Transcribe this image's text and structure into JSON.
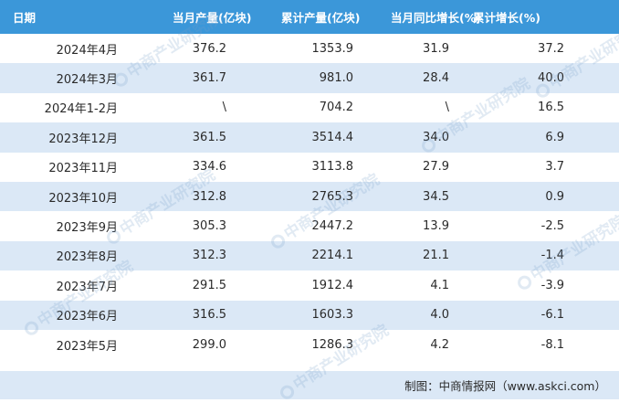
{
  "table": {
    "headers": [
      "日期",
      "当月产量(亿块)",
      "累计产量(亿块)",
      "当月同比增长(%)",
      "累计增长(%)"
    ],
    "rows": [
      [
        "2024年4月",
        "376.2",
        "1353.9",
        "31.9",
        "37.2"
      ],
      [
        "2024年3月",
        "361.7",
        "981.0",
        "28.4",
        "40.0"
      ],
      [
        "2024年1-2月",
        "\\",
        "704.2",
        "\\",
        "16.5"
      ],
      [
        "2023年12月",
        "361.5",
        "3514.4",
        "34.0",
        "6.9"
      ],
      [
        "2023年11月",
        "334.6",
        "3113.8",
        "27.9",
        "3.7"
      ],
      [
        "2023年10月",
        "312.8",
        "2765.3",
        "34.5",
        "0.9"
      ],
      [
        "2023年9月",
        "305.3",
        "2447.2",
        "13.9",
        "-2.5"
      ],
      [
        "2023年8月",
        "312.3",
        "2214.1",
        "21.1",
        "-1.4"
      ],
      [
        "2023年7月",
        "291.5",
        "1912.4",
        "4.1",
        "-3.9"
      ],
      [
        "2023年6月",
        "316.5",
        "1603.3",
        "4.0",
        "-6.1"
      ],
      [
        "2023年5月",
        "299.0",
        "1286.3",
        "4.2",
        "-8.1"
      ]
    ]
  },
  "footer": {
    "source": "制图：中商情报网（www.askci.com）"
  },
  "watermark": {
    "text": "中商产业研究院"
  },
  "colors": {
    "header_bg": "#3b97d9",
    "stripe_bg": "#dbe8f6",
    "row_bg": "#ffffff"
  }
}
